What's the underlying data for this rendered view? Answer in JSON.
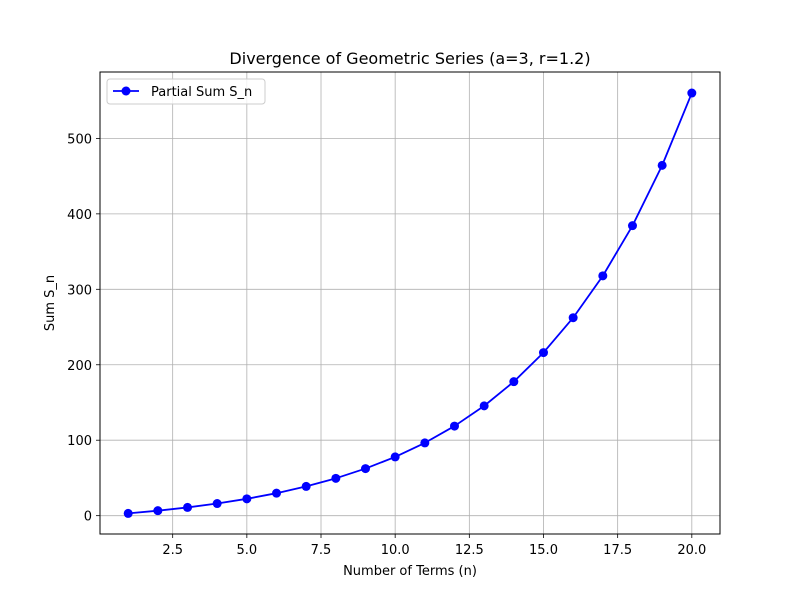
{
  "chart_data": {
    "type": "line",
    "title": "Divergence of Geometric Series (a=3, r=1.2)",
    "xlabel": "Number of Terms (n)",
    "ylabel": "Sum S_n",
    "xlim": [
      0.05,
      20.95
    ],
    "ylim": [
      -24.3,
      588.0
    ],
    "x_ticks": [
      2.5,
      5.0,
      7.5,
      10.0,
      12.5,
      15.0,
      17.5,
      20.0
    ],
    "x_tick_labels": [
      "2.5",
      "5.0",
      "7.5",
      "10.0",
      "12.5",
      "15.0",
      "17.5",
      "20.0"
    ],
    "y_ticks": [
      0,
      100,
      200,
      300,
      400,
      500
    ],
    "y_tick_labels": [
      "0",
      "100",
      "200",
      "300",
      "400",
      "500"
    ],
    "grid": true,
    "legend_position": "upper-left",
    "series": [
      {
        "name": "Partial Sum S_n",
        "color": "#0000ff",
        "marker": "circle",
        "x": [
          1,
          2,
          3,
          4,
          5,
          6,
          7,
          8,
          9,
          10,
          11,
          12,
          13,
          14,
          15,
          16,
          17,
          18,
          19,
          20
        ],
        "y": [
          3.0,
          6.6,
          10.92,
          16.1,
          22.32,
          29.79,
          38.75,
          49.5,
          62.4,
          77.88,
          96.46,
          118.75,
          145.5,
          177.6,
          216.12,
          262.34,
          317.81,
          384.37,
          464.25,
          560.1
        ]
      }
    ]
  }
}
